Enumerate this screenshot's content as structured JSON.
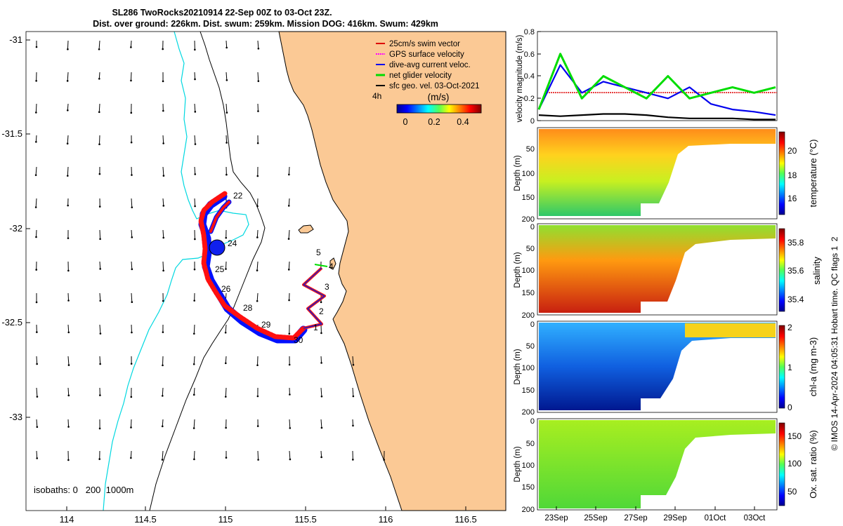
{
  "header": {
    "line1": "SL286 TwoRocks20210914 22-Sep 00Z to 03-Oct 23Z.",
    "line2": "Dist. over ground: 226km. Dist. swum: 259km. Mission DOG: 416km. Swum: 429km"
  },
  "map": {
    "lon_ticks": [
      "114",
      "114.5",
      "115",
      "115.5",
      "116",
      "116.5"
    ],
    "lat_ticks": [
      "-31",
      "-31.5",
      "-32",
      "-32.5",
      "-33"
    ],
    "isobaths_text": "isobaths: 0   200  1000m",
    "legend": [
      {
        "label": "25cm/s swim vector",
        "color": "#dd0000"
      },
      {
        "label": "GPS surface velocity",
        "color": "#ff00ff"
      },
      {
        "label": "dive-avg current veloc.",
        "color": "#0000ee"
      },
      {
        "label": "net glider velocity",
        "color": "#00dd00"
      },
      {
        "label": "sfc geo. vel. 03-Oct-2021",
        "color": "#000000"
      }
    ],
    "colorbar": {
      "unit": "(m/s)",
      "side_label": "4h",
      "ticks": [
        "0",
        "0.2",
        "0.4"
      ]
    },
    "day_labels": [
      "22",
      "24",
      "25",
      "26",
      "28",
      "29",
      "30",
      "1",
      "2",
      "3",
      "4",
      "5"
    ],
    "ocean_color": "#ffffff",
    "land_color": "#fbc995"
  },
  "chart_data": [
    {
      "type": "line",
      "title": "",
      "ylabel": "velocity magnitude (m/s)",
      "ylim": [
        0,
        0.8
      ],
      "y_ticks": [
        "0",
        "0.2",
        "0.4",
        "0.6",
        "0.8"
      ],
      "x": [
        0,
        1,
        2,
        3,
        4,
        5,
        6,
        7,
        8,
        9,
        10,
        11
      ],
      "series": [
        {
          "name": "dive-avg current veloc.",
          "color": "#0000ee",
          "values": [
            0.1,
            0.5,
            0.25,
            0.35,
            0.3,
            0.25,
            0.2,
            0.3,
            0.15,
            0.1,
            0.08,
            0.05
          ]
        },
        {
          "name": "net glider velocity",
          "color": "#00dd00",
          "values": [
            0.1,
            0.6,
            0.2,
            0.4,
            0.3,
            0.2,
            0.4,
            0.2,
            0.25,
            0.3,
            0.25,
            0.3
          ]
        },
        {
          "name": "sfc geo. vel. 03-Oct-2021",
          "color": "#000000",
          "values": [
            0.05,
            0.04,
            0.05,
            0.06,
            0.06,
            0.05,
            0.03,
            0.02,
            0.02,
            0.02,
            0.01,
            0.01
          ]
        }
      ]
    },
    {
      "type": "heatmap",
      "ylabel": "Depth (m)",
      "y_ticks": [
        "0",
        "50",
        "100",
        "150",
        "200"
      ],
      "colorbar_label": "temperature (°C)",
      "colorbar_ticks": [
        "16",
        "18",
        "20"
      ]
    },
    {
      "type": "heatmap",
      "ylabel": "Depth (m)",
      "y_ticks": [
        "0",
        "50",
        "100",
        "150",
        "200"
      ],
      "colorbar_label": "salinity",
      "colorbar_ticks": [
        "35.4",
        "35.6",
        "35.8"
      ]
    },
    {
      "type": "heatmap",
      "ylabel": "Depth (m)",
      "y_ticks": [
        "0",
        "50",
        "100",
        "150",
        "200"
      ],
      "colorbar_label": "chl-a (mg m-3)",
      "colorbar_ticks": [
        "0",
        "1",
        "2"
      ]
    },
    {
      "type": "heatmap",
      "ylabel": "Depth (m)",
      "y_ticks": [
        "0",
        "50",
        "100",
        "150",
        "200"
      ],
      "colorbar_label": "Ox. sat. ratio (%)",
      "colorbar_ticks": [
        "50",
        "100",
        "150"
      ],
      "x_ticks": [
        "23Sep",
        "25Sep",
        "27Sep",
        "29Sep",
        "01Oct",
        "03Oct"
      ]
    }
  ],
  "footer": {
    "credit": "© IMOS 14-Apr-2024 04:05:31 Hobart time. QC flags 1  2"
  }
}
